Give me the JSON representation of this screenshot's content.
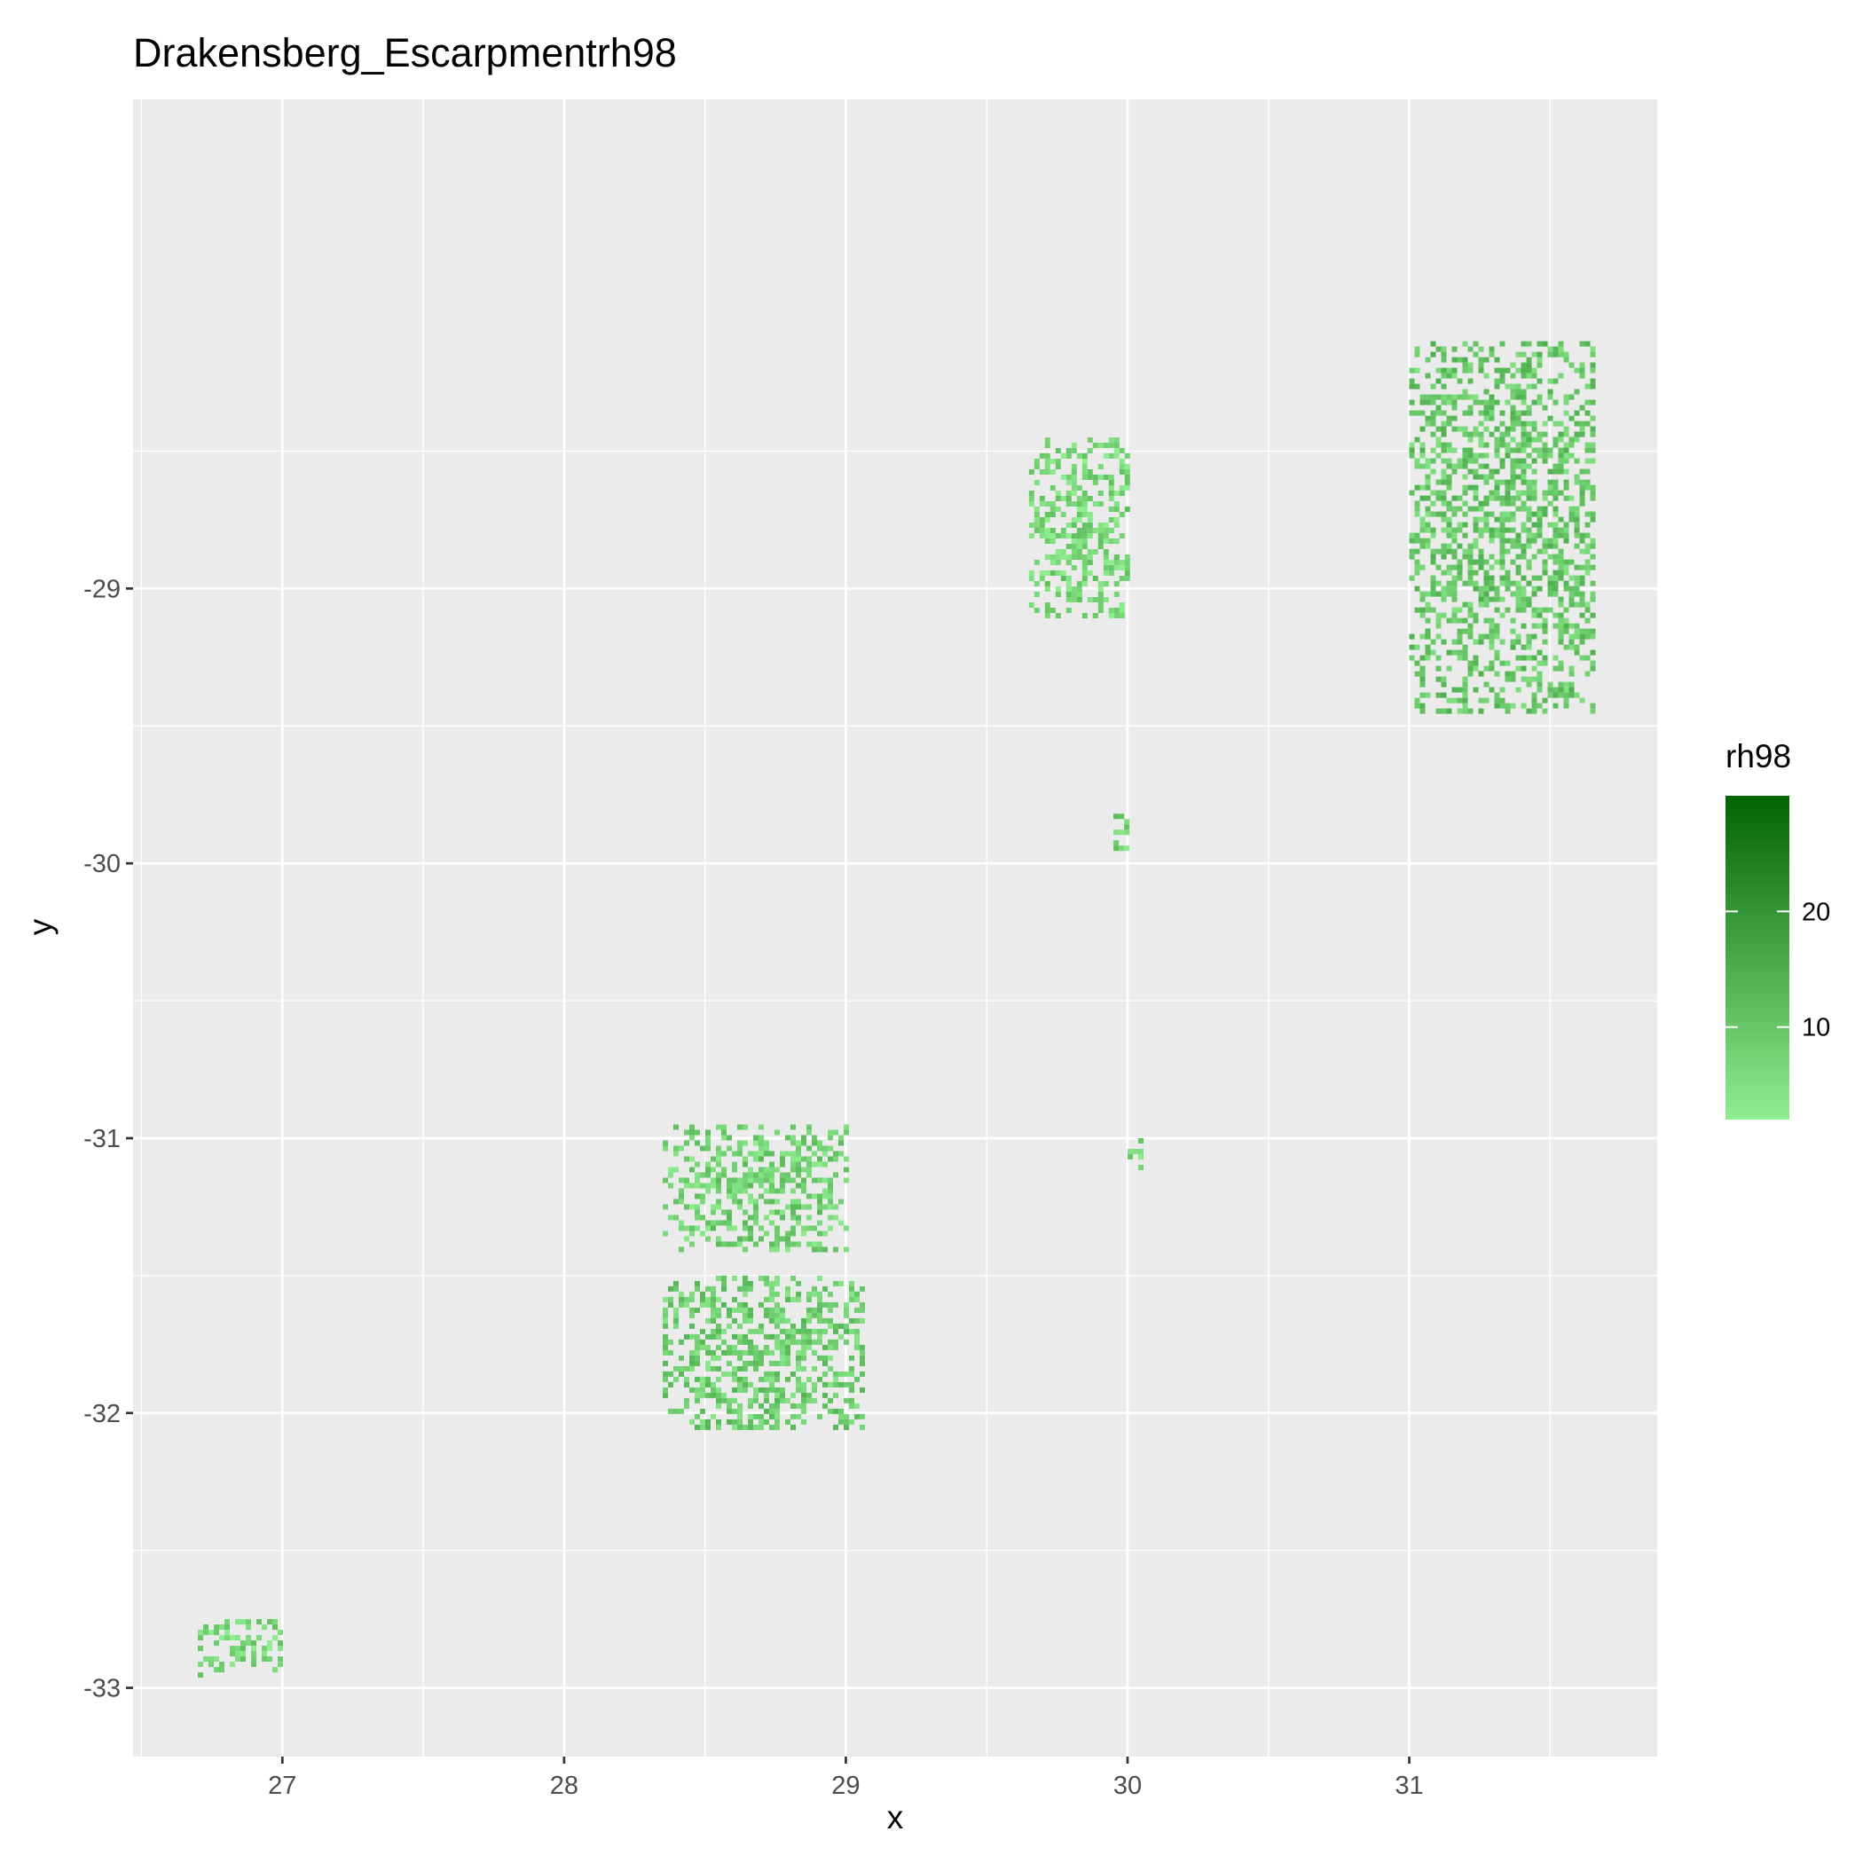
{
  "chart_data": {
    "type": "heatmap",
    "title": "Drakensberg_Escarpmentrh98",
    "xlabel": "x",
    "ylabel": "y",
    "xlim": [
      26.47,
      31.88
    ],
    "ylim": [
      -33.25,
      -27.22
    ],
    "x_ticks": [
      27,
      28,
      29,
      30,
      31
    ],
    "y_ticks": [
      -29,
      -30,
      -31,
      -32,
      -33
    ],
    "x_minor": [
      26.5,
      27.5,
      28.5,
      29.5,
      30.5,
      31.5
    ],
    "y_minor": [
      -28.5,
      -29.5,
      -30.5,
      -31.5,
      -32.5
    ],
    "grid": true,
    "panel_background": "#ebebeb",
    "legend": {
      "title": "rh98",
      "position": "right",
      "ticks": [
        10,
        20
      ],
      "range": [
        2,
        30
      ],
      "color_low": "#90ee90",
      "color_high": "#006400"
    },
    "patches": [
      {
        "x": [
          29.65,
          30.0
        ],
        "y": [
          -28.45,
          -29.1
        ],
        "mean": 5
      },
      {
        "x": [
          31.0,
          31.65
        ],
        "y": [
          -28.1,
          -29.45
        ],
        "mean": 8
      },
      {
        "x": [
          29.95,
          30.0
        ],
        "y": [
          -29.8,
          -29.95
        ],
        "mean": 6
      },
      {
        "x": [
          28.35,
          29.0
        ],
        "y": [
          -30.95,
          -31.4
        ],
        "mean": 6
      },
      {
        "x": [
          28.35,
          29.05
        ],
        "y": [
          -31.5,
          -32.05
        ],
        "mean": 7
      },
      {
        "x": [
          30.0,
          30.05
        ],
        "y": [
          -31.0,
          -31.1
        ],
        "mean": 5
      },
      {
        "x": [
          26.7,
          27.0
        ],
        "y": [
          -32.75,
          -32.95
        ],
        "mean": 5
      }
    ]
  }
}
